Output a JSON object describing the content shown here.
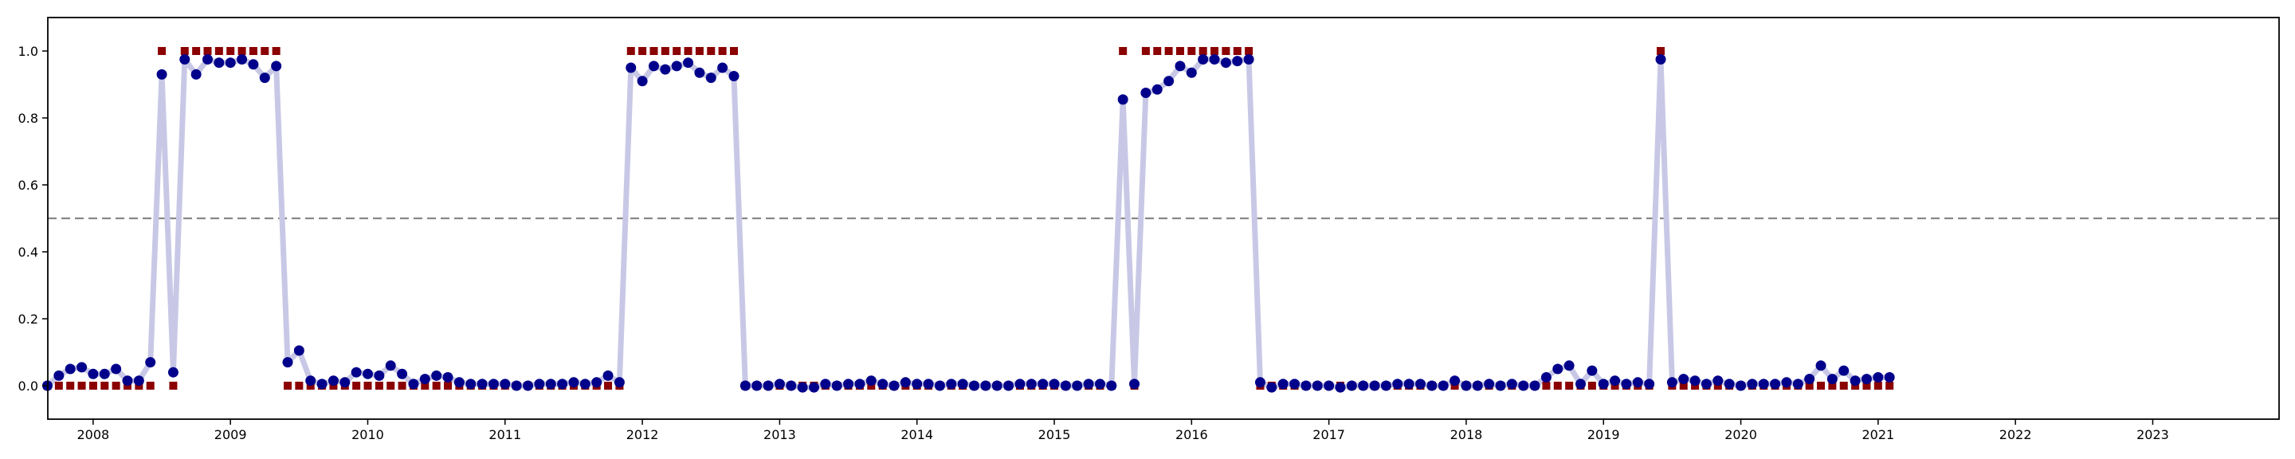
{
  "chart_data": {
    "type": "scatter",
    "title": "",
    "xlabel": "",
    "ylabel": "",
    "xlim": [
      2007.67,
      2023.92
    ],
    "ylim": [
      -0.1,
      1.1
    ],
    "grid": false,
    "x_ticks": [
      2008,
      2009,
      2010,
      2011,
      2012,
      2013,
      2014,
      2015,
      2016,
      2017,
      2018,
      2019,
      2020,
      2021,
      2022,
      2023
    ],
    "x_tick_labels": [
      "2008",
      "2009",
      "2010",
      "2011",
      "2012",
      "2013",
      "2014",
      "2015",
      "2016",
      "2017",
      "2018",
      "2019",
      "2020",
      "2021",
      "2022",
      "2023"
    ],
    "y_ticks": [
      0.0,
      0.2,
      0.4,
      0.6,
      0.8,
      1.0
    ],
    "y_tick_labels": [
      "0.0",
      "0.2",
      "0.4",
      "0.6",
      "0.8",
      "1.0"
    ],
    "threshold": 0.5,
    "x_start": 2007.667,
    "x_step": 0.08333,
    "series": [
      {
        "values": [
          0.0,
          0.03,
          0.05,
          0.055,
          0.035,
          0.035,
          0.05,
          0.015,
          0.015,
          0.07,
          0.93,
          0.04,
          0.975,
          0.93,
          0.975,
          0.965,
          0.965,
          0.975,
          0.96,
          0.92,
          0.955,
          0.07,
          0.105,
          0.015,
          0.005,
          0.015,
          0.01,
          0.04,
          0.035,
          0.03,
          0.06,
          0.035,
          0.005,
          0.02,
          0.03,
          0.025,
          0.01,
          0.005,
          0.005,
          0.005,
          0.005,
          0.0,
          0.0,
          0.005,
          0.005,
          0.005,
          0.01,
          0.005,
          0.01,
          0.03,
          0.01,
          0.95,
          0.91,
          0.955,
          0.945,
          0.955,
          0.965,
          0.935,
          0.92,
          0.95,
          0.925,
          0.0,
          0.0,
          0.0,
          0.005,
          0.0,
          -0.005,
          -0.005,
          0.005,
          0.0,
          0.005,
          0.005,
          0.015,
          0.005,
          0.0,
          0.01,
          0.005,
          0.005,
          0.0,
          0.005,
          0.005,
          0.0,
          0.0,
          0.0,
          0.0,
          0.005,
          0.005,
          0.005,
          0.005,
          0.0,
          0.0,
          0.005,
          0.005,
          0.0,
          0.855,
          0.005,
          0.875,
          0.885,
          0.91,
          0.955,
          0.935,
          0.975,
          0.975,
          0.965,
          0.97,
          0.975,
          0.01,
          -0.005,
          0.005,
          0.005,
          0.0,
          0.0,
          0.0,
          -0.005,
          0.0,
          0.0,
          0.0,
          0.0,
          0.005,
          0.005,
          0.005,
          0.0,
          0.0,
          0.015,
          0.0,
          0.0,
          0.005,
          0.0,
          0.005,
          0.0,
          0.0,
          0.025,
          0.05,
          0.06,
          0.005,
          0.045,
          0.005,
          0.015,
          0.005,
          0.01,
          0.005,
          0.975,
          0.01,
          0.02,
          0.015,
          0.005,
          0.015,
          0.005,
          0.0,
          0.005,
          0.005,
          0.005,
          0.01,
          0.005,
          0.02,
          0.06,
          0.02,
          0.045,
          0.015,
          0.02,
          0.025,
          0.025
        ],
        "style": "circle",
        "color": "#00008b",
        "line_color": "#c8c8e6"
      },
      {
        "values": [
          0,
          0,
          0,
          0,
          0,
          0,
          0,
          0,
          0,
          0,
          1,
          0,
          1,
          1,
          1,
          1,
          1,
          1,
          1,
          1,
          1,
          0,
          0,
          0,
          0,
          0,
          0,
          0,
          0,
          0,
          0,
          0,
          0,
          0,
          0,
          0,
          0,
          0,
          0,
          0,
          0,
          0,
          0,
          0,
          0,
          0,
          0,
          0,
          0,
          0,
          0,
          1,
          1,
          1,
          1,
          1,
          1,
          1,
          1,
          1,
          1,
          0,
          0,
          0,
          0,
          0,
          0,
          0,
          0,
          0,
          0,
          0,
          0,
          0,
          0,
          0,
          0,
          0,
          0,
          0,
          0,
          0,
          0,
          0,
          0,
          0,
          0,
          0,
          0,
          0,
          0,
          0,
          0,
          0,
          1,
          0,
          1,
          1,
          1,
          1,
          1,
          1,
          1,
          1,
          1,
          1,
          0,
          0,
          0,
          0,
          0,
          0,
          0,
          0,
          0,
          0,
          0,
          0,
          0,
          0,
          0,
          0,
          0,
          0,
          0,
          0,
          0,
          0,
          0,
          0,
          0,
          0,
          0,
          0,
          0,
          0,
          0,
          0,
          0,
          0,
          0,
          1,
          0,
          0,
          0,
          0,
          0,
          0,
          0,
          0,
          0,
          0,
          0,
          0,
          0,
          0,
          0,
          0,
          0,
          0,
          0,
          0
        ],
        "style": "square",
        "color": "#8b0000"
      }
    ],
    "colors": {
      "threshold_line": "#888888",
      "axes": "#000000"
    }
  }
}
